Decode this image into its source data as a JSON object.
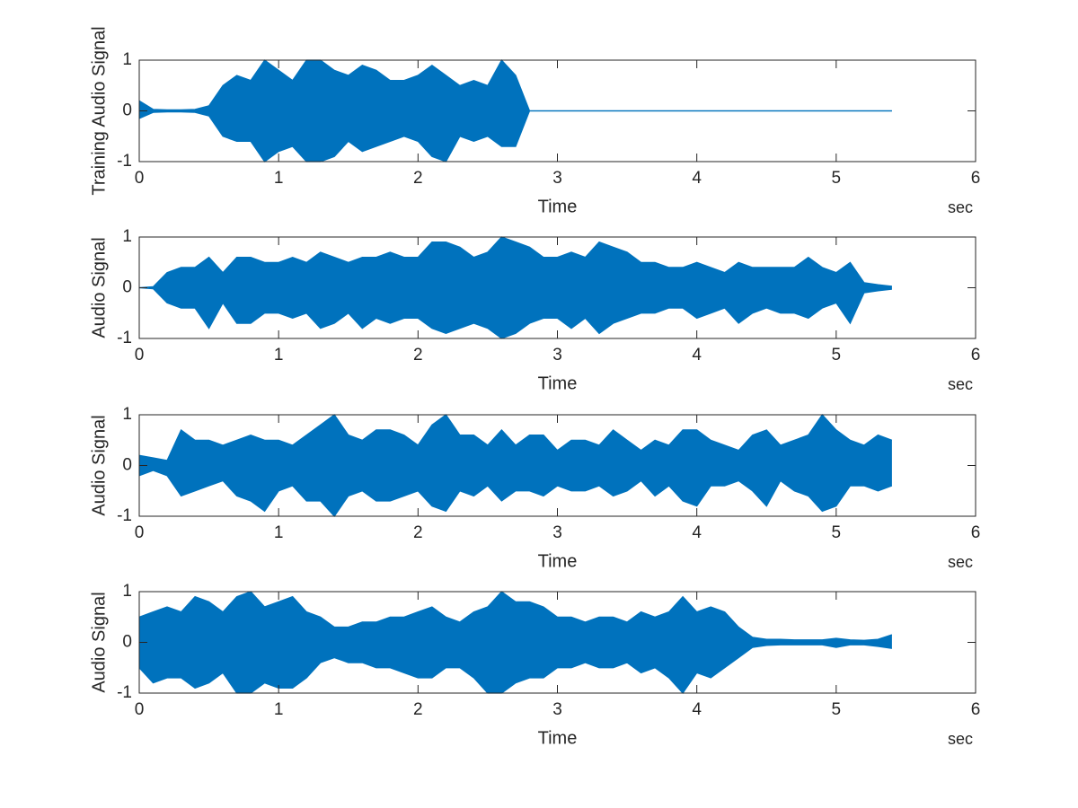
{
  "chart_data": [
    {
      "type": "area",
      "ylabel": "Training Audio Signal",
      "xlabel": "Time",
      "xunit": "sec",
      "color": "#0072bd",
      "xlim": [
        0,
        6
      ],
      "xticks": [
        0,
        1,
        2,
        3,
        4,
        5,
        6
      ],
      "ylim": [
        -1,
        1
      ],
      "yticks": [
        -1,
        0,
        1
      ],
      "x": [
        0,
        0.1,
        0.2,
        0.3,
        0.4,
        0.5,
        0.6,
        0.7,
        0.8,
        0.9,
        1,
        1.1,
        1.2,
        1.3,
        1.4,
        1.5,
        1.6,
        1.7,
        1.8,
        1.9,
        2,
        2.1,
        2.2,
        2.3,
        2.4,
        2.5,
        2.6,
        2.7,
        2.8,
        2.9,
        3,
        3.1,
        3.2,
        3.3,
        3.4,
        3.5,
        3.6,
        3.7,
        3.8,
        3.9,
        4,
        4.1,
        4.2,
        4.3,
        4.4,
        4.5,
        4.6,
        4.7,
        4.8,
        4.9,
        5,
        5.1,
        5.2,
        5.3,
        5.4
      ],
      "upper": [
        0.2,
        0.03,
        0.02,
        0.02,
        0.03,
        0.1,
        0.5,
        0.7,
        0.6,
        1,
        0.8,
        0.6,
        1,
        1,
        0.8,
        0.7,
        0.9,
        0.8,
        0.6,
        0.6,
        0.7,
        0.9,
        0.7,
        0.5,
        0.6,
        0.5,
        1,
        0.7,
        0,
        0,
        0,
        0,
        0,
        0,
        0,
        0,
        0,
        0,
        0,
        0,
        0,
        0,
        0,
        0,
        0,
        0,
        0,
        0,
        0,
        0,
        0,
        0,
        0,
        0,
        0
      ],
      "lower": [
        -0.15,
        -0.03,
        -0.02,
        -0.02,
        -0.03,
        -0.1,
        -0.5,
        -0.6,
        -0.6,
        -1,
        -0.8,
        -0.7,
        -1,
        -1,
        -0.9,
        -0.6,
        -0.8,
        -0.7,
        -0.6,
        -0.5,
        -0.6,
        -0.9,
        -1,
        -0.5,
        -0.6,
        -0.5,
        -0.7,
        -0.7,
        0,
        0,
        0,
        0,
        0,
        0,
        0,
        0,
        0,
        0,
        0,
        0,
        0,
        0,
        0,
        0,
        0,
        0,
        0,
        0,
        0,
        0,
        0,
        0,
        0,
        0,
        0
      ]
    },
    {
      "type": "area",
      "ylabel": "Audio Signal",
      "xlabel": "Time",
      "xunit": "sec",
      "color": "#0072bd",
      "xlim": [
        0,
        6
      ],
      "xticks": [
        0,
        1,
        2,
        3,
        4,
        5,
        6
      ],
      "ylim": [
        -1,
        1
      ],
      "yticks": [
        -1,
        0,
        1
      ],
      "x": [
        0,
        0.1,
        0.2,
        0.3,
        0.4,
        0.5,
        0.6,
        0.7,
        0.8,
        0.9,
        1,
        1.1,
        1.2,
        1.3,
        1.4,
        1.5,
        1.6,
        1.7,
        1.8,
        1.9,
        2,
        2.1,
        2.2,
        2.3,
        2.4,
        2.5,
        2.6,
        2.7,
        2.8,
        2.9,
        3,
        3.1,
        3.2,
        3.3,
        3.4,
        3.5,
        3.6,
        3.7,
        3.8,
        3.9,
        4,
        4.1,
        4.2,
        4.3,
        4.4,
        4.5,
        4.6,
        4.7,
        4.8,
        4.9,
        5,
        5.1,
        5.2,
        5.3,
        5.4
      ],
      "upper": [
        0,
        0.02,
        0.3,
        0.4,
        0.4,
        0.6,
        0.3,
        0.6,
        0.6,
        0.5,
        0.5,
        0.6,
        0.5,
        0.7,
        0.6,
        0.5,
        0.6,
        0.6,
        0.7,
        0.6,
        0.6,
        0.9,
        0.9,
        0.8,
        0.6,
        0.7,
        1,
        0.9,
        0.8,
        0.6,
        0.6,
        0.7,
        0.6,
        0.9,
        0.8,
        0.7,
        0.5,
        0.5,
        0.4,
        0.4,
        0.5,
        0.4,
        0.3,
        0.5,
        0.4,
        0.4,
        0.4,
        0.4,
        0.6,
        0.4,
        0.3,
        0.5,
        0.1,
        0.06,
        0.03
      ],
      "lower": [
        0,
        -0.02,
        -0.3,
        -0.4,
        -0.4,
        -0.8,
        -0.3,
        -0.7,
        -0.7,
        -0.5,
        -0.5,
        -0.6,
        -0.5,
        -0.8,
        -0.7,
        -0.5,
        -0.8,
        -0.6,
        -0.7,
        -0.6,
        -0.6,
        -0.8,
        -0.9,
        -0.8,
        -0.7,
        -0.8,
        -1,
        -0.9,
        -0.7,
        -0.6,
        -0.6,
        -0.8,
        -0.6,
        -0.9,
        -0.7,
        -0.6,
        -0.5,
        -0.5,
        -0.4,
        -0.4,
        -0.6,
        -0.5,
        -0.4,
        -0.7,
        -0.5,
        -0.4,
        -0.5,
        -0.5,
        -0.6,
        -0.4,
        -0.3,
        -0.7,
        -0.1,
        -0.06,
        -0.03
      ]
    },
    {
      "type": "area",
      "ylabel": "Audio Signal",
      "xlabel": "Time",
      "xunit": "sec",
      "color": "#0072bd",
      "xlim": [
        0,
        6
      ],
      "xticks": [
        0,
        1,
        2,
        3,
        4,
        5,
        6
      ],
      "ylim": [
        -1,
        1
      ],
      "yticks": [
        -1,
        0,
        1
      ],
      "x": [
        0,
        0.1,
        0.2,
        0.3,
        0.4,
        0.5,
        0.6,
        0.7,
        0.8,
        0.9,
        1,
        1.1,
        1.2,
        1.3,
        1.4,
        1.5,
        1.6,
        1.7,
        1.8,
        1.9,
        2,
        2.1,
        2.2,
        2.3,
        2.4,
        2.5,
        2.6,
        2.7,
        2.8,
        2.9,
        3,
        3.1,
        3.2,
        3.3,
        3.4,
        3.5,
        3.6,
        3.7,
        3.8,
        3.9,
        4,
        4.1,
        4.2,
        4.3,
        4.4,
        4.5,
        4.6,
        4.7,
        4.8,
        4.9,
        5,
        5.1,
        5.2,
        5.3,
        5.4
      ],
      "upper": [
        0.2,
        0.15,
        0.1,
        0.7,
        0.5,
        0.5,
        0.4,
        0.5,
        0.6,
        0.5,
        0.5,
        0.4,
        0.6,
        0.8,
        1,
        0.6,
        0.5,
        0.7,
        0.7,
        0.6,
        0.4,
        0.8,
        1,
        0.6,
        0.6,
        0.4,
        0.7,
        0.4,
        0.6,
        0.6,
        0.3,
        0.5,
        0.5,
        0.4,
        0.7,
        0.5,
        0.3,
        0.5,
        0.4,
        0.7,
        0.7,
        0.5,
        0.4,
        0.3,
        0.6,
        0.7,
        0.4,
        0.5,
        0.6,
        1,
        0.7,
        0.5,
        0.4,
        0.6,
        0.5
      ],
      "lower": [
        -0.2,
        -0.1,
        -0.2,
        -0.6,
        -0.5,
        -0.4,
        -0.3,
        -0.6,
        -0.7,
        -0.9,
        -0.5,
        -0.4,
        -0.7,
        -0.7,
        -1,
        -0.6,
        -0.5,
        -0.7,
        -0.7,
        -0.6,
        -0.5,
        -0.8,
        -0.9,
        -0.5,
        -0.6,
        -0.4,
        -0.7,
        -0.5,
        -0.5,
        -0.6,
        -0.4,
        -0.5,
        -0.5,
        -0.4,
        -0.6,
        -0.5,
        -0.3,
        -0.6,
        -0.4,
        -0.7,
        -0.8,
        -0.4,
        -0.4,
        -0.3,
        -0.5,
        -0.8,
        -0.3,
        -0.5,
        -0.6,
        -0.9,
        -0.8,
        -0.4,
        -0.4,
        -0.5,
        -0.4
      ]
    },
    {
      "type": "area",
      "ylabel": "Audio Signal",
      "xlabel": "Time",
      "xunit": "sec",
      "color": "#0072bd",
      "xlim": [
        0,
        6
      ],
      "xticks": [
        0,
        1,
        2,
        3,
        4,
        5,
        6
      ],
      "ylim": [
        -1,
        1
      ],
      "yticks": [
        -1,
        0,
        1
      ],
      "x": [
        0,
        0.1,
        0.2,
        0.3,
        0.4,
        0.5,
        0.6,
        0.7,
        0.8,
        0.9,
        1,
        1.1,
        1.2,
        1.3,
        1.4,
        1.5,
        1.6,
        1.7,
        1.8,
        1.9,
        2,
        2.1,
        2.2,
        2.3,
        2.4,
        2.5,
        2.6,
        2.7,
        2.8,
        2.9,
        3,
        3.1,
        3.2,
        3.3,
        3.4,
        3.5,
        3.6,
        3.7,
        3.8,
        3.9,
        4,
        4.1,
        4.2,
        4.3,
        4.4,
        4.5,
        4.6,
        4.7,
        4.8,
        4.9,
        5,
        5.1,
        5.2,
        5.3,
        5.4
      ],
      "upper": [
        0.5,
        0.6,
        0.7,
        0.6,
        0.9,
        0.8,
        0.6,
        0.9,
        1,
        0.7,
        0.8,
        0.9,
        0.6,
        0.5,
        0.3,
        0.3,
        0.4,
        0.4,
        0.5,
        0.5,
        0.6,
        0.7,
        0.5,
        0.4,
        0.6,
        0.7,
        1,
        0.8,
        0.8,
        0.7,
        0.5,
        0.5,
        0.4,
        0.5,
        0.5,
        0.4,
        0.6,
        0.5,
        0.6,
        0.9,
        0.6,
        0.7,
        0.6,
        0.3,
        0.1,
        0.06,
        0.06,
        0.05,
        0.05,
        0.05,
        0.08,
        0.05,
        0.04,
        0.06,
        0.15
      ],
      "lower": [
        -0.5,
        -0.8,
        -0.7,
        -0.7,
        -0.9,
        -0.8,
        -0.6,
        -1,
        -1,
        -0.8,
        -0.9,
        -0.9,
        -0.7,
        -0.4,
        -0.3,
        -0.4,
        -0.4,
        -0.5,
        -0.5,
        -0.6,
        -0.7,
        -0.7,
        -0.5,
        -0.5,
        -0.7,
        -1,
        -1,
        -0.8,
        -0.7,
        -0.7,
        -0.5,
        -0.5,
        -0.4,
        -0.5,
        -0.5,
        -0.4,
        -0.6,
        -0.5,
        -0.7,
        -1,
        -0.6,
        -0.7,
        -0.5,
        -0.3,
        -0.1,
        -0.06,
        -0.05,
        -0.05,
        -0.05,
        -0.05,
        -0.1,
        -0.05,
        -0.05,
        -0.08,
        -0.12
      ]
    }
  ]
}
